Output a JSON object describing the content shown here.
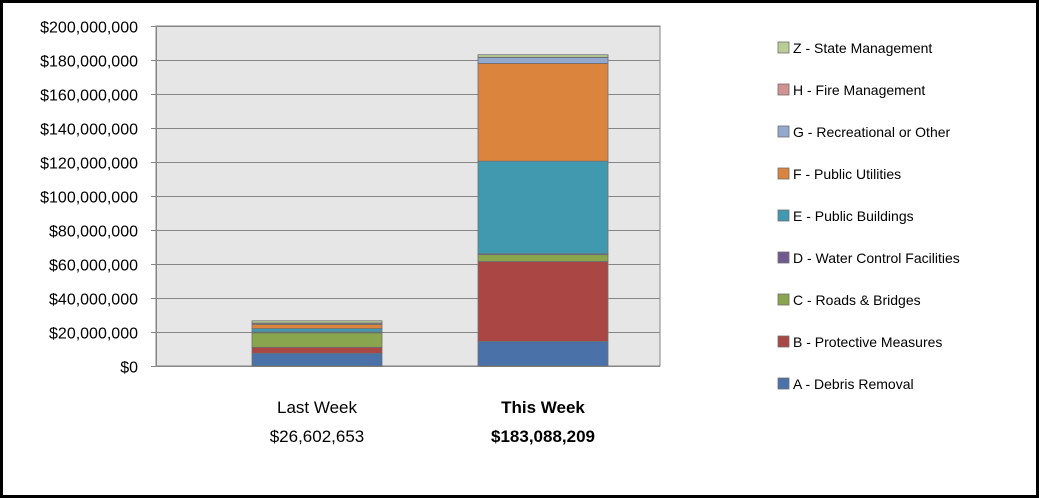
{
  "chart_data": {
    "type": "bar",
    "stacked": true,
    "categories": [
      "Last Week",
      "This Week"
    ],
    "category_totals": [
      "$26,602,653",
      "$183,088,209"
    ],
    "series": [
      {
        "name": "A - Debris Removal",
        "color": "#4a72a9",
        "values": [
          7500000,
          14500000
        ]
      },
      {
        "name": "B - Protective Measures",
        "color": "#aa4644",
        "values": [
          3500000,
          47000000
        ]
      },
      {
        "name": "C - Roads & Bridges",
        "color": "#89a54e",
        "values": [
          8500000,
          4000000
        ]
      },
      {
        "name": "D - Water Control Facilities",
        "color": "#71598f",
        "values": [
          500000,
          500000
        ]
      },
      {
        "name": "E - Public Buildings",
        "color": "#4199b0",
        "values": [
          2000000,
          54500000
        ]
      },
      {
        "name": "F - Public Utilities",
        "color": "#db843d",
        "values": [
          2500000,
          57500000
        ]
      },
      {
        "name": "G - Recreational or Other",
        "color": "#93a9cf",
        "values": [
          600000,
          3500000
        ]
      },
      {
        "name": "H - Fire Management",
        "color": "#d19392",
        "values": [
          200000,
          100000
        ]
      },
      {
        "name": "Z - State Management",
        "color": "#b9cd96",
        "values": [
          1302653,
          1488209
        ]
      }
    ],
    "ylim": [
      0,
      200000000
    ],
    "yticks": [
      0,
      20000000,
      40000000,
      60000000,
      80000000,
      100000000,
      120000000,
      140000000,
      160000000,
      180000000,
      200000000
    ],
    "ytick_labels": [
      "$0",
      "$20,000,000",
      "$40,000,000",
      "$60,000,000",
      "$80,000,000",
      "$100,000,000",
      "$120,000,000",
      "$140,000,000",
      "$160,000,000",
      "$180,000,000",
      "$200,000,000"
    ],
    "grid": true,
    "legend_position": "right",
    "legend_order": "reverse",
    "plot_background": "#e6e6e6"
  }
}
